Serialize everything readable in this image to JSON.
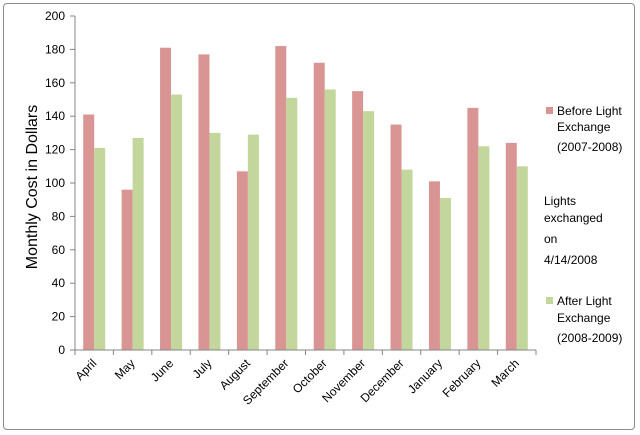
{
  "chart_data": {
    "type": "bar",
    "title": "",
    "xlabel": "",
    "ylabel": "Monthly Cost in Dollars",
    "ylim": [
      0,
      200
    ],
    "yticks": [
      0,
      20,
      40,
      60,
      80,
      100,
      120,
      140,
      160,
      180,
      200
    ],
    "grid": false,
    "legend_position": "right",
    "categories": [
      "April",
      "May",
      "June",
      "July",
      "August",
      "September",
      "October",
      "November",
      "December",
      "January",
      "February",
      "March"
    ],
    "series": [
      {
        "name": "Before Light Exchange (2007-2008)",
        "color": "#d99594",
        "values": [
          141,
          96,
          181,
          177,
          107,
          182,
          172,
          155,
          135,
          101,
          145,
          124
        ]
      },
      {
        "name": "After Light Exchange (2008-2009)",
        "color": "#c3d69b",
        "values": [
          121,
          127,
          153,
          130,
          129,
          151,
          156,
          143,
          108,
          91,
          122,
          110
        ]
      }
    ],
    "legend": {
      "before_lines": [
        "Before Light",
        "Exchange",
        "(2007-2008)"
      ],
      "after_lines": [
        "After Light",
        "Exchange",
        "(2008-2009)"
      ]
    },
    "annotation_lines": [
      "Lights",
      "exchanged",
      "on",
      "4/14/2008"
    ]
  }
}
